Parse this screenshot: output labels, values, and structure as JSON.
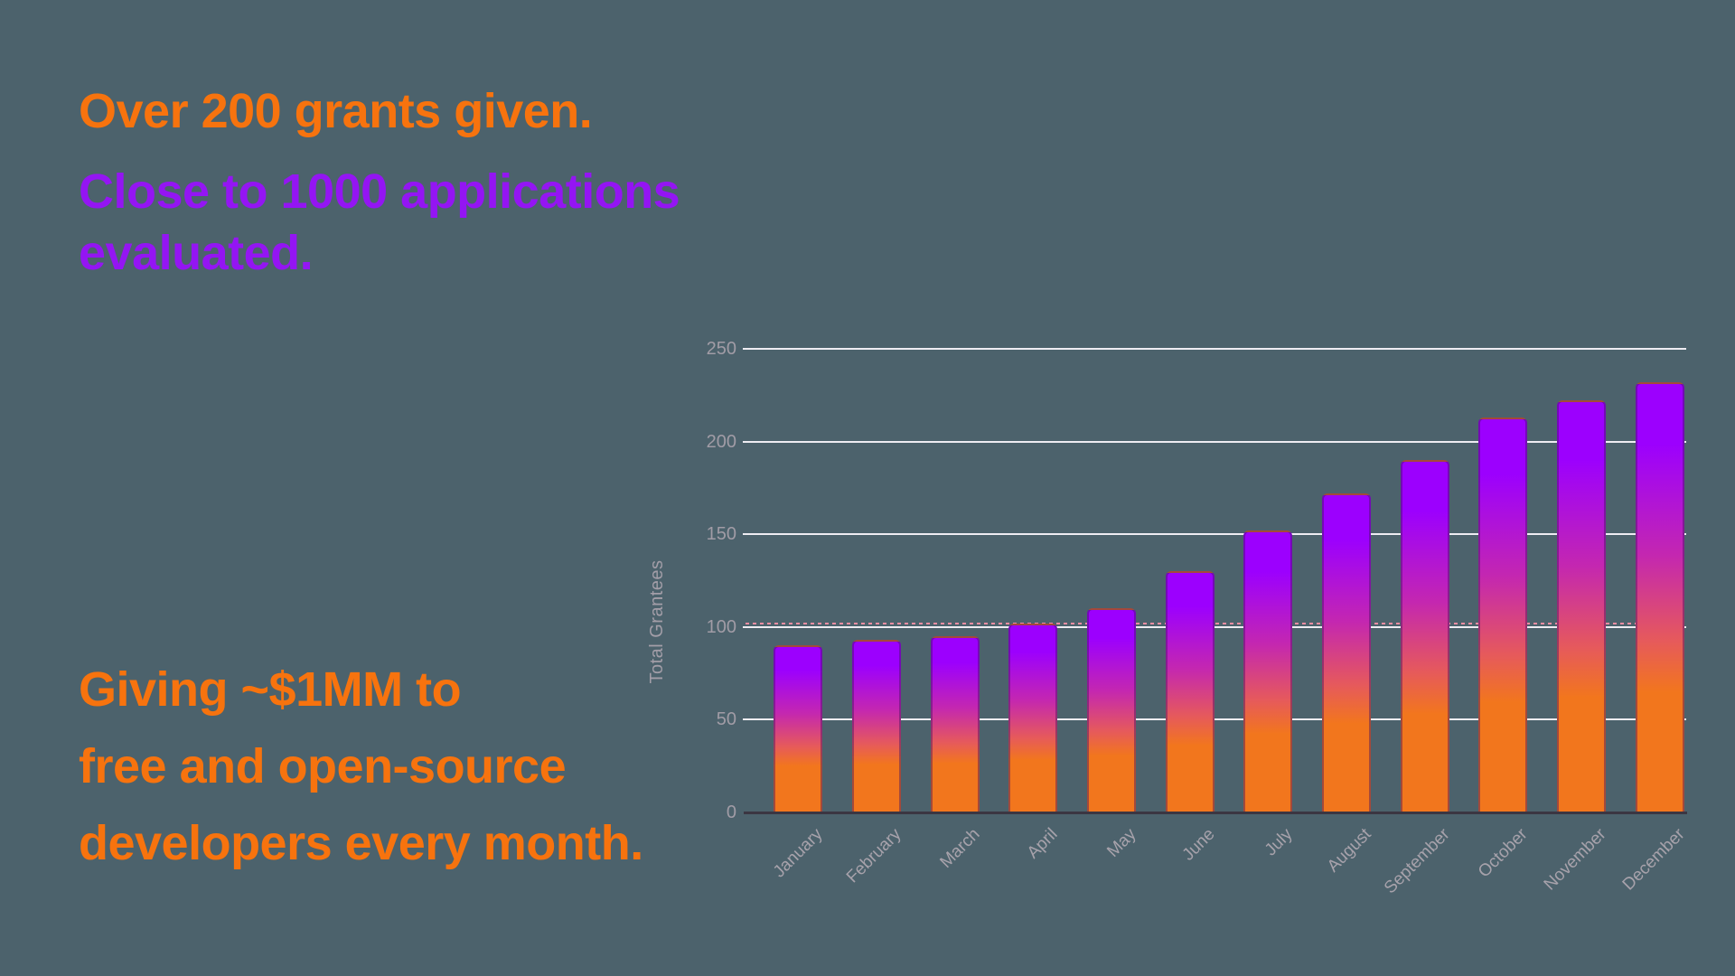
{
  "background_color": "#4c626c",
  "headline": {
    "grants_line": "Over 200 grants given.",
    "applications_line1": "Close to 1000 applications",
    "applications_line2": "evaluated.",
    "orange_color": "#f7730e",
    "purple_color": "#9415f3"
  },
  "footline": {
    "line1": "Giving ~$1MM to",
    "line2": "free and open-source",
    "line3": "developers every month."
  },
  "chart_data": {
    "type": "bar",
    "title": "",
    "xlabel": "",
    "ylabel": "Total Grantees",
    "categories": [
      "January",
      "February",
      "March",
      "April",
      "May",
      "June",
      "July",
      "August",
      "September",
      "October",
      "November",
      "December"
    ],
    "values": [
      90,
      93,
      95,
      102,
      110,
      130,
      152,
      172,
      190,
      213,
      222,
      232
    ],
    "ylim": [
      0,
      250
    ],
    "yticks": [
      0,
      50,
      100,
      150,
      200,
      250
    ],
    "grid": true,
    "gridline_color": "#eeecf2",
    "tick_label_color": "#a19ca6",
    "annotation_line": {
      "y": 100,
      "style": "dashed",
      "color": "#f08da2"
    },
    "bar_gradient_top_to_bottom": [
      "#9c00fe",
      "#c427b0",
      "#e65a5b",
      "#f2761d"
    ],
    "axis_line_color": "#3b3642",
    "legend": "none"
  }
}
